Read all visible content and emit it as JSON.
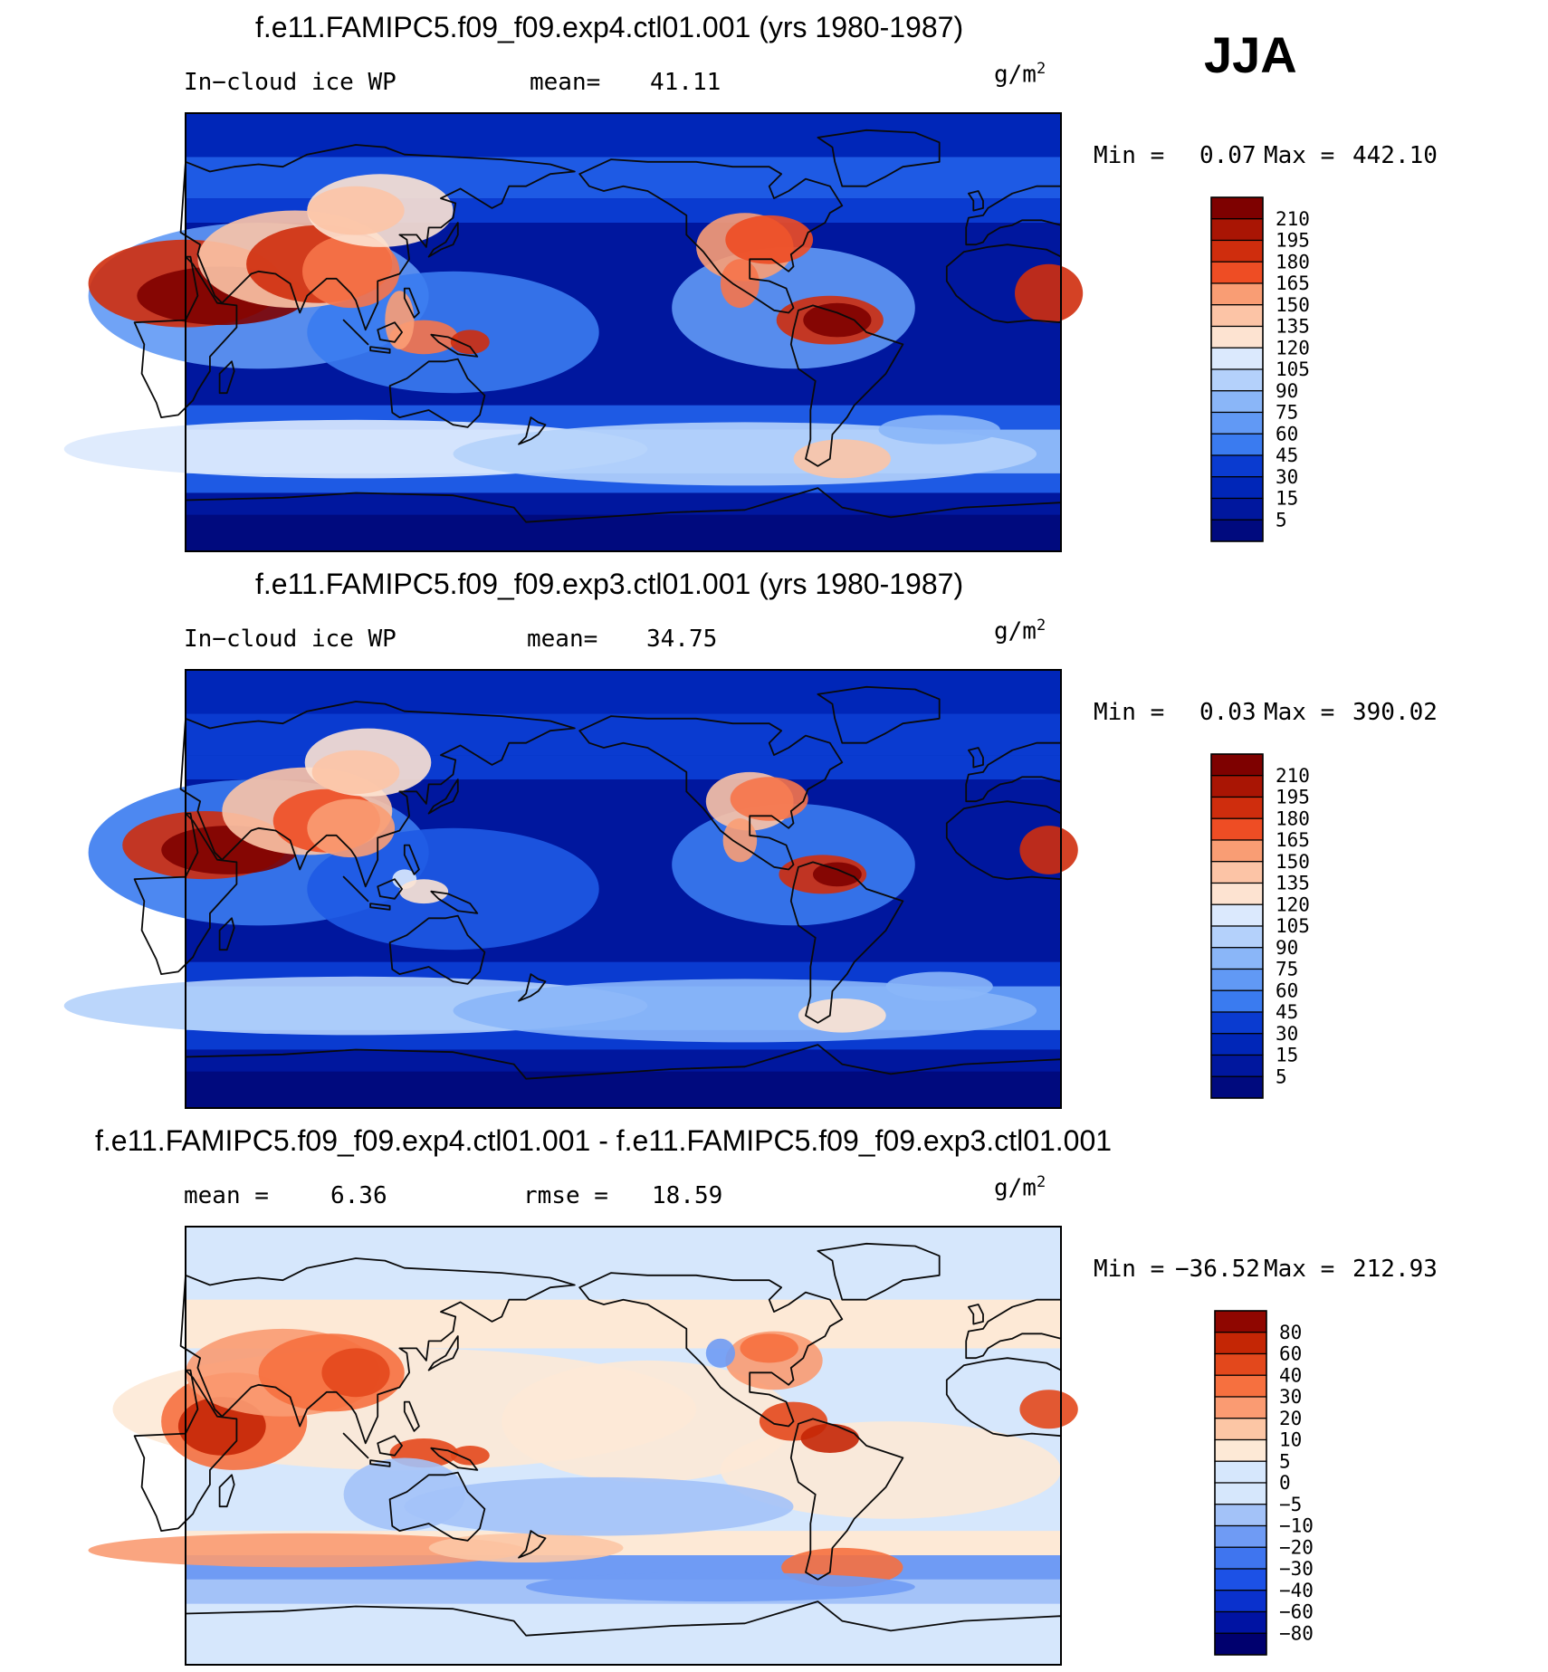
{
  "season": "JJA",
  "colors": {
    "land": "#0a0a0a",
    "ice_scale": [
      "#000a7e",
      "#00179e",
      "#0026b8",
      "#0a3bd0",
      "#1e5ae4",
      "#3a7bf0",
      "#6199f5",
      "#8ab6f8",
      "#b4d1fb",
      "#dbe9fd",
      "#fde3d1",
      "#fcc4a6",
      "#f99d74",
      "#f6744a",
      "#ee4d24",
      "#cf2d0d",
      "#a91504",
      "#7e0100"
    ],
    "diff_scale": [
      "#00006e",
      "#0013a3",
      "#0a31cd",
      "#1c51e6",
      "#3f75ef",
      "#6f9bf4",
      "#a3c2f8",
      "#d6e7fc",
      "#fde9d6",
      "#fcc6a5",
      "#fa9b72",
      "#f6703f",
      "#e3481c",
      "#c42605",
      "#8f0600"
    ]
  },
  "panels": [
    {
      "title": "f.e11.FAMIPC5.f09_f09.exp4.ctl01.001 (yrs 1980-1987)",
      "left_label": "In−cloud ice WP",
      "mean_label": "mean=",
      "mean_value": "41.11",
      "units": "g/m",
      "units_sup": "2",
      "min_label": "Min =",
      "min_value": "0.07",
      "max_label": "Max =",
      "max_value": "442.10"
    },
    {
      "title": "f.e11.FAMIPC5.f09_f09.exp3.ctl01.001 (yrs 1980-1987)",
      "left_label": "In−cloud ice WP",
      "mean_label": "mean=",
      "mean_value": "34.75",
      "units": "g/m",
      "units_sup": "2",
      "min_label": "Min =",
      "min_value": "0.03",
      "max_label": "Max =",
      "max_value": "390.02"
    },
    {
      "title": "f.e11.FAMIPC5.f09_f09.exp4.ctl01.001 - f.e11.FAMIPC5.f09_f09.exp3.ctl01.001",
      "left_label": "mean =",
      "left_value": "6.36",
      "mean_label": "rmse =",
      "mean_value": "18.59",
      "units": "g/m",
      "units_sup": "2",
      "min_label": "Min =",
      "min_value": "−36.52",
      "max_label": "Max =",
      "max_value": "212.93"
    }
  ],
  "chart_data": [
    {
      "type": "heatmap",
      "title": "f.e11.FAMIPC5.f09_f09.exp4.ctl01.001 (yrs 1980-1987)",
      "variable": "In-cloud ice WP",
      "units": "g/m2",
      "mean": 41.11,
      "min": 0.07,
      "max": 442.1,
      "colorbar_levels": [
        "210",
        "195",
        "180",
        "165",
        "150",
        "135",
        "120",
        "105",
        "90",
        "75",
        "60",
        "45",
        "30",
        "15",
        "5"
      ]
    },
    {
      "type": "heatmap",
      "title": "f.e11.FAMIPC5.f09_f09.exp3.ctl01.001 (yrs 1980-1987)",
      "variable": "In-cloud ice WP",
      "units": "g/m2",
      "mean": 34.75,
      "min": 0.03,
      "max": 390.02,
      "colorbar_levels": [
        "210",
        "195",
        "180",
        "165",
        "150",
        "135",
        "120",
        "105",
        "90",
        "75",
        "60",
        "45",
        "30",
        "15",
        "5"
      ]
    },
    {
      "type": "heatmap",
      "title": "f.e11.FAMIPC5.f09_f09.exp4.ctl01.001 - f.e11.FAMIPC5.f09_f09.exp3.ctl01.001",
      "variable": "difference",
      "units": "g/m2",
      "mean": 6.36,
      "rmse": 18.59,
      "min": -36.52,
      "max": 212.93,
      "colorbar_levels": [
        "80",
        "60",
        "40",
        "30",
        "20",
        "10",
        "5",
        "0",
        "−5",
        "−10",
        "−20",
        "−30",
        "−40",
        "−60",
        "−80"
      ]
    }
  ]
}
